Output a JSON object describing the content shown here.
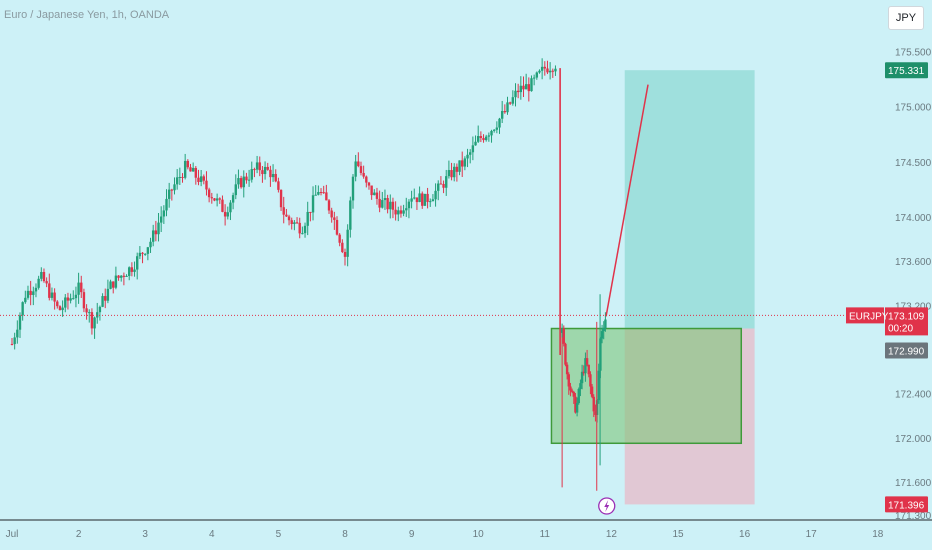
{
  "header": {
    "title": "Euro / Japanese Yen, 1h, OANDA",
    "currency_button": "JPY"
  },
  "colors": {
    "background": "#cdf1f7",
    "up_candle": "#22a07a",
    "down_candle": "#e0334a",
    "target_zone": "#8fd9d4",
    "stop_zone": "#e3c3cf",
    "demand_zone": "#7fc77a",
    "demand_zone_border": "#3f9a3a",
    "projection_line": "#e0334a",
    "last_price_badge": "#e0334a",
    "target_badge": "#1e8f6a",
    "entry_badge": "#6b757c"
  },
  "chart_data": {
    "type": "candlestick",
    "symbol": "EURJPY",
    "title": "Euro / Japanese Yen, 1h, OANDA",
    "ylim": [
      171.3,
      175.65
    ],
    "y_ticks": [
      "175.500",
      "175.000",
      "174.500",
      "174.000",
      "173.600",
      "173.200",
      "172.400",
      "172.000",
      "171.600",
      "171.300"
    ],
    "x_ticks": [
      {
        "label": "Jul",
        "day": 0
      },
      {
        "label": "2",
        "day": 1
      },
      {
        "label": "3",
        "day": 2
      },
      {
        "label": "4",
        "day": 3
      },
      {
        "label": "5",
        "day": 4
      },
      {
        "label": "8",
        "day": 5
      },
      {
        "label": "9",
        "day": 6
      },
      {
        "label": "10",
        "day": 7
      },
      {
        "label": "11",
        "day": 8
      },
      {
        "label": "12",
        "day": 9
      },
      {
        "label": "15",
        "day": 10
      },
      {
        "label": "16",
        "day": 11
      },
      {
        "label": "17",
        "day": 12
      },
      {
        "label": "18",
        "day": 13
      }
    ],
    "price_path": [
      [
        0.0,
        172.85
      ],
      [
        0.2,
        173.3
      ],
      [
        0.45,
        173.45
      ],
      [
        0.7,
        173.15
      ],
      [
        1.0,
        173.35
      ],
      [
        1.2,
        173.05
      ],
      [
        1.5,
        173.4
      ],
      [
        1.8,
        173.55
      ],
      [
        2.1,
        173.8
      ],
      [
        2.4,
        174.25
      ],
      [
        2.6,
        174.45
      ],
      [
        2.8,
        174.35
      ],
      [
        3.0,
        174.2
      ],
      [
        3.2,
        174.05
      ],
      [
        3.4,
        174.3
      ],
      [
        3.7,
        174.45
      ],
      [
        3.9,
        174.4
      ],
      [
        4.1,
        174.0
      ],
      [
        4.35,
        173.9
      ],
      [
        4.6,
        174.25
      ],
      [
        4.8,
        174.05
      ],
      [
        5.0,
        173.65
      ],
      [
        5.15,
        174.55
      ],
      [
        5.3,
        174.3
      ],
      [
        5.5,
        174.15
      ],
      [
        5.8,
        174.05
      ],
      [
        6.0,
        174.2
      ],
      [
        6.2,
        174.15
      ],
      [
        6.4,
        174.25
      ],
      [
        6.6,
        174.4
      ],
      [
        6.8,
        174.5
      ],
      [
        7.0,
        174.7
      ],
      [
        7.2,
        174.8
      ],
      [
        7.4,
        174.95
      ],
      [
        7.6,
        175.15
      ],
      [
        7.8,
        175.2
      ],
      [
        8.0,
        175.35
      ],
      [
        8.2,
        175.4
      ]
    ],
    "crash_path": [
      [
        8.26,
        172.95
      ],
      [
        8.33,
        172.6
      ],
      [
        8.4,
        172.4
      ],
      [
        8.47,
        172.25
      ],
      [
        8.55,
        172.55
      ],
      [
        8.62,
        172.7
      ],
      [
        8.7,
        172.4
      ],
      [
        8.77,
        172.15
      ],
      [
        8.84,
        172.95
      ],
      [
        8.92,
        173.1
      ]
    ],
    "last_price": {
      "label": "EURJPY",
      "value": "173.109",
      "countdown": "00:20",
      "value_num": 173.109
    },
    "target": {
      "value": "175.331",
      "value_num": 175.331
    },
    "entry": {
      "value": "172.990",
      "value_num": 172.99
    },
    "stop": {
      "value": "171.396",
      "value_num": 171.396
    },
    "zones": {
      "demand": {
        "x0": 8.1,
        "x1": 10.95,
        "y_low": 171.95,
        "y_high": 172.99
      },
      "target": {
        "x0": 9.2,
        "x1": 11.15,
        "y_low": 172.99,
        "y_high": 175.331
      },
      "stop": {
        "x0": 9.2,
        "x1": 11.15,
        "y_low": 171.396,
        "y_high": 172.99
      }
    },
    "projection": [
      [
        8.92,
        173.1
      ],
      [
        9.55,
        175.2
      ]
    ],
    "event_marker": {
      "day": 8.93
    }
  }
}
